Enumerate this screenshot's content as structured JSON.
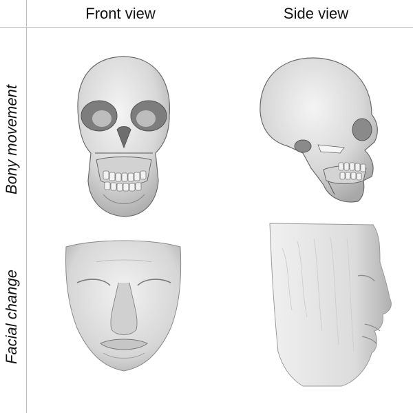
{
  "columns": {
    "front": "Front view",
    "side": "Side view"
  },
  "rows": {
    "bony": "Bony movement",
    "facial": "Facial change"
  },
  "colors": {
    "grid": "#bdbdbd",
    "model_fill": "#e2e2e2",
    "model_shade": "#9a9a9a",
    "model_outline": "#6a6a6a"
  }
}
